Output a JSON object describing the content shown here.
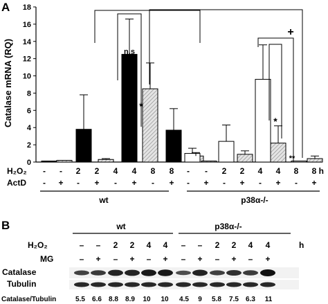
{
  "panel_a": {
    "label": "A",
    "sig_ns": "n.s",
    "sig_plus": "+",
    "sig_star": "*",
    "sig_double_star": "**"
  },
  "treatments_a": {
    "h2o2_label": "H₂O₂",
    "actd_label": "ActD",
    "unit": "h",
    "h2o2_values": [
      "-",
      "-",
      "2",
      "2",
      "4",
      "4",
      "8",
      "8",
      "-",
      "-",
      "2",
      "2",
      "4",
      "4",
      "8",
      "8"
    ],
    "actd_values": [
      "-",
      "+",
      "-",
      "+",
      "-",
      "+",
      "-",
      "+",
      "-",
      "+",
      "-",
      "+",
      "-",
      "+",
      "-",
      "+"
    ],
    "group_labels": [
      "wt",
      "p38α-/-"
    ]
  },
  "chart_data": {
    "type": "bar",
    "title": "",
    "xlabel": "",
    "ylabel": "Catalase mRNA (RQ)",
    "ylim": [
      0,
      18
    ],
    "yticks": [
      "0",
      "2",
      "4",
      "6",
      "8",
      "10",
      "12",
      "14",
      "16",
      "18"
    ],
    "groups": [
      "wt",
      "p38α-/-"
    ],
    "bars": [
      {
        "group": "wt",
        "h2o2": "-",
        "actd": "-",
        "value": 0.1,
        "error": 0
      },
      {
        "group": "wt",
        "h2o2": "-",
        "actd": "+",
        "value": 0.2,
        "error": 0
      },
      {
        "group": "wt",
        "h2o2": "2",
        "actd": "-",
        "value": 3.8,
        "error": 4.0
      },
      {
        "group": "wt",
        "h2o2": "2",
        "actd": "+",
        "value": 0.3,
        "error": 0.1
      },
      {
        "group": "wt",
        "h2o2": "4",
        "actd": "-",
        "value": 12.5,
        "error": 4.1
      },
      {
        "group": "wt",
        "h2o2": "4",
        "actd": "+",
        "value": 8.5,
        "error": 3.0
      },
      {
        "group": "wt",
        "h2o2": "8",
        "actd": "-",
        "value": 3.7,
        "error": 2.5
      },
      {
        "group": "wt",
        "h2o2": "8",
        "actd": "+",
        "value": 0.7,
        "error": 0.4
      },
      {
        "group": "p38α-/-",
        "h2o2": "-",
        "actd": "-",
        "value": 1.0,
        "error": 0.6
      },
      {
        "group": "p38α-/-",
        "h2o2": "-",
        "actd": "+",
        "value": 0.1,
        "error": 0
      },
      {
        "group": "p38α-/-",
        "h2o2": "2",
        "actd": "-",
        "value": 2.4,
        "error": 1.9
      },
      {
        "group": "p38α-/-",
        "h2o2": "2",
        "actd": "+",
        "value": 0.9,
        "error": 0.4
      },
      {
        "group": "p38α-/-",
        "h2o2": "4",
        "actd": "-",
        "value": 9.6,
        "error": 4.0
      },
      {
        "group": "p38α-/-",
        "h2o2": "4",
        "actd": "+",
        "value": 2.2,
        "error": 2.0
      },
      {
        "group": "p38α-/-",
        "h2o2": "8",
        "actd": "-",
        "value": 0.05,
        "error": 0
      },
      {
        "group": "p38α-/-",
        "h2o2": "8",
        "actd": "+",
        "value": 0.4,
        "error": 0.3
      }
    ],
    "bar_fill": {
      "wt_no_actd": "#000000",
      "wt_actd": "#d9d9d9",
      "ko_no_actd": "#ffffff",
      "ko_actd": "#d9d9d9"
    },
    "grid": false,
    "legend": "none"
  },
  "panel_b": {
    "label": "B",
    "group_labels": [
      "wt",
      "p38α-/-"
    ],
    "h2o2_label": "H₂O₂",
    "mg_label": "MG",
    "unit": "h",
    "h2o2_values": [
      "–",
      "–",
      "2",
      "2",
      "4",
      "4",
      "–",
      "–",
      "2",
      "2",
      "4",
      "4"
    ],
    "mg_values": [
      "–",
      "+",
      "–",
      "+",
      "–",
      "+",
      "–",
      "+",
      "–",
      "+",
      "–",
      "+"
    ],
    "catalase_label": "Catalase",
    "tubulin_label": "Tubulin",
    "ratio_label": "Catalase/Tubulin",
    "ratios": [
      "5.5",
      "6.6",
      "8.8",
      "8.9",
      "10",
      "10",
      "4.5",
      "9",
      "5.8",
      "7.5",
      "6.3",
      "11"
    ]
  }
}
